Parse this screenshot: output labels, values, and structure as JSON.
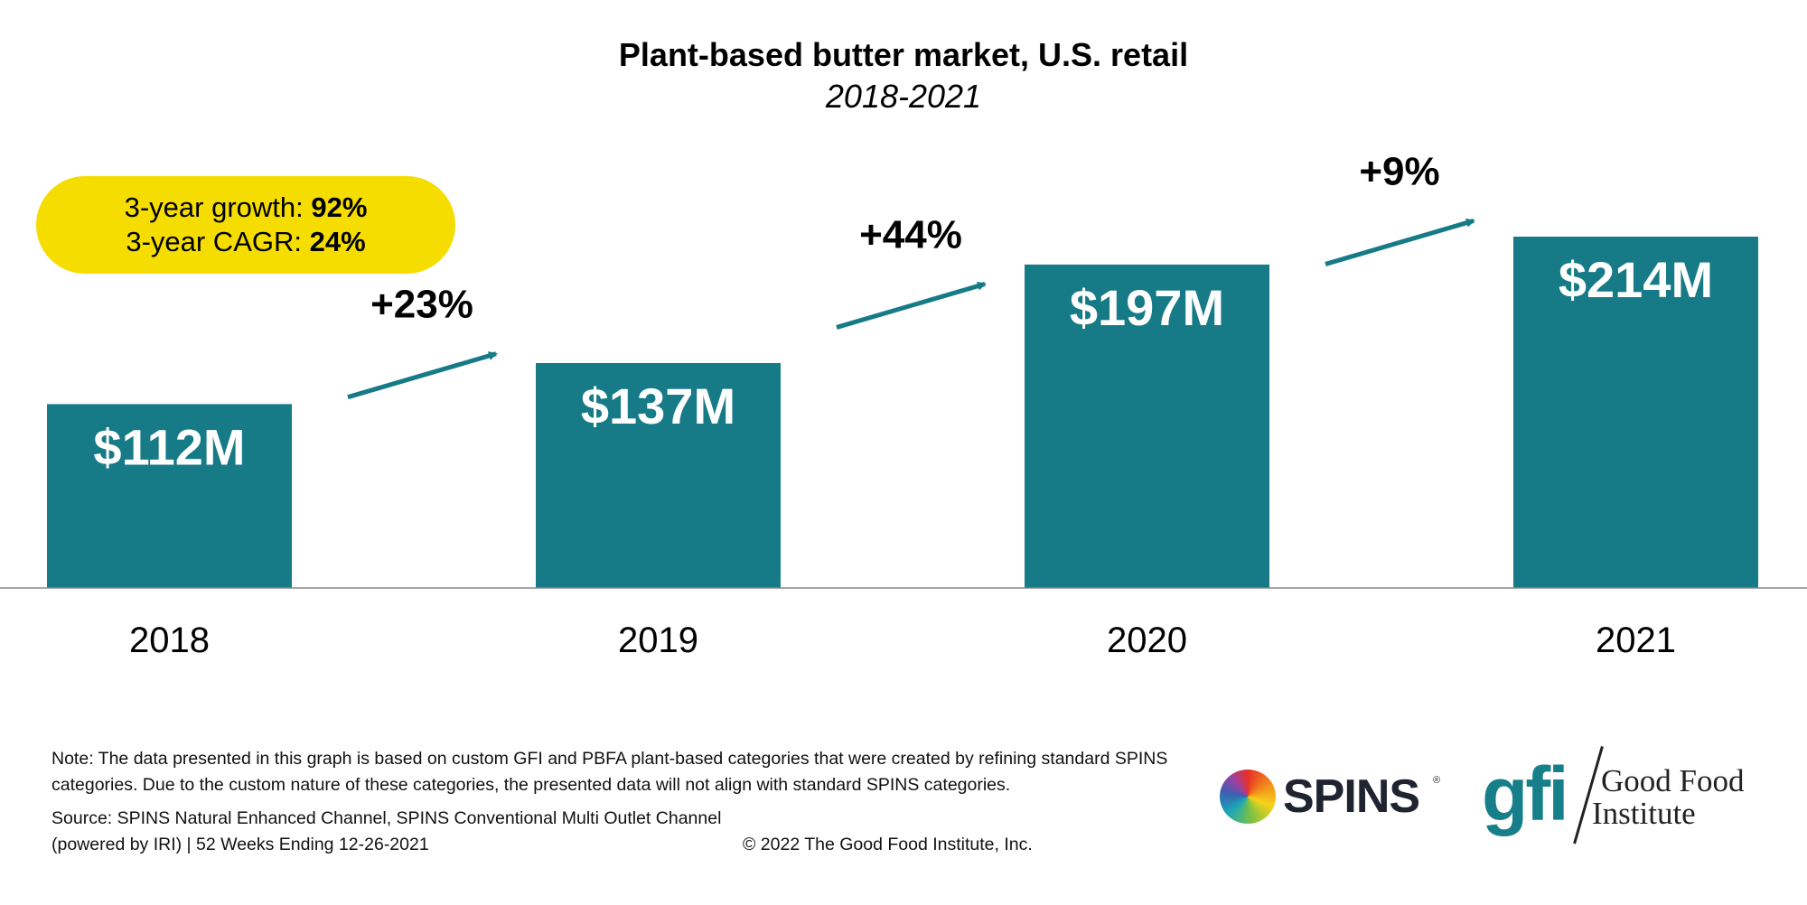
{
  "chart_data": {
    "type": "bar",
    "title": "Plant-based butter market, U.S. retail",
    "subtitle": "2018-2021",
    "categories": [
      "2018",
      "2019",
      "2020",
      "2021"
    ],
    "values": [
      112,
      137,
      197,
      214
    ],
    "value_labels": [
      "$112M",
      "$137M",
      "$197M",
      "$214M"
    ],
    "unit": "$M",
    "ylim": [
      0,
      214
    ],
    "bar_color": "#167b86",
    "growth_labels": [
      "+23%",
      "+44%",
      "+9%"
    ],
    "arrow_color": "#167b86",
    "grid": false,
    "legend": "none"
  },
  "summary": {
    "growth_label": "3-year growth:",
    "growth_value": "92%",
    "cagr_label": "3-year CAGR:",
    "cagr_value": "24%",
    "color": "#f5dd00"
  },
  "footer": {
    "note": "Note: The data presented in this graph is based on custom GFI and PBFA plant-based categories that were created by refining standard SPINS categories. Due to the custom nature of these categories, the presented data will not align with standard SPINS categories.",
    "source": "Source: SPINS Natural Enhanced Channel, SPINS Conventional Multi Outlet Channel (powered by IRI) | 52 Weeks Ending 12-26-2021",
    "copyright": "© 2022 The Good Food Institute, Inc."
  },
  "logos": {
    "spins": "SPINS",
    "spins_reg": "®",
    "gfi_mark": "gfi",
    "gfi_name_line1": "Good Food",
    "gfi_name_line2": "Institute"
  }
}
